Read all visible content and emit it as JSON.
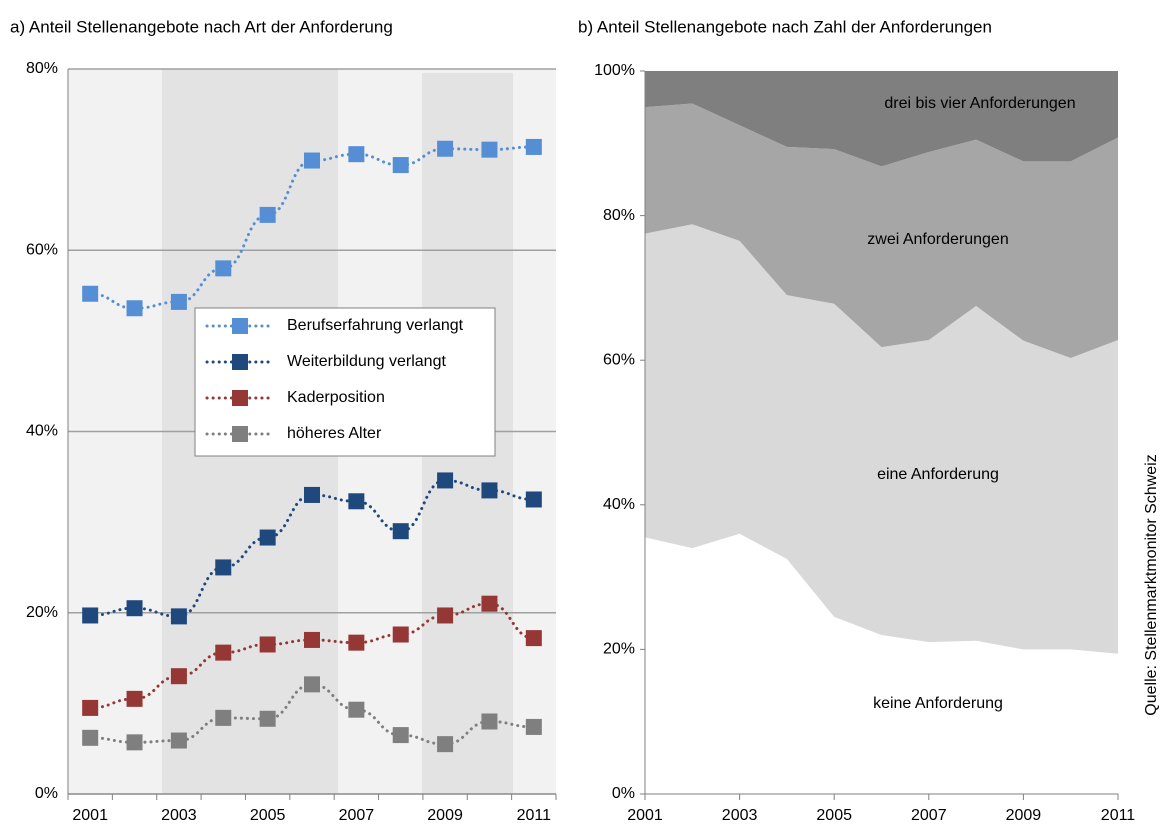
{
  "chart_data": [
    {
      "type": "line",
      "title": "a)  Anteil Stellenangebote  nach Art der Anforderung",
      "categories": [
        "2001",
        null,
        "2003",
        null,
        "2005",
        null,
        "2007",
        null,
        "2009",
        null,
        "2011"
      ],
      "ylim": [
        0,
        80
      ],
      "yticks": [
        {
          "value": 0,
          "label": "0%"
        },
        {
          "value": 20,
          "label": "20%"
        },
        {
          "value": 40,
          "label": "40%"
        },
        {
          "value": 60,
          "label": "60%"
        },
        {
          "value": 80,
          "label": "80%"
        }
      ],
      "grid": true,
      "series": [
        {
          "name": "Berufserfahrung verlangt",
          "color": "#558ed5",
          "values": [
            55.2,
            53.6,
            54.3,
            58,
            63.9,
            69.9,
            70.6,
            69.4,
            71.2,
            71.1,
            71.4
          ]
        },
        {
          "name": "Weiterbildung verlangt",
          "color": "#1f497d",
          "values": [
            19.7,
            20.5,
            19.6,
            25,
            28.3,
            33,
            32.3,
            29,
            34.6,
            33.5,
            32.5
          ]
        },
        {
          "name": "Kaderposition",
          "color": "#953735",
          "values": [
            9.5,
            10.5,
            13,
            15.6,
            16.5,
            17,
            16.7,
            17.6,
            19.7,
            21,
            17.2
          ]
        },
        {
          "name": "höheres Alter",
          "color": "#7f7f7f",
          "values": [
            6.2,
            5.7,
            5.9,
            8.4,
            8.3,
            12.1,
            9.3,
            6.5,
            5.5,
            8,
            7.4
          ]
        }
      ]
    },
    {
      "type": "area",
      "title": "b)  Anteil Stellenangebote  nach Zahl der Anforderungen",
      "x": [
        2001,
        2002,
        2003,
        2004,
        2005,
        2006,
        2007,
        2008,
        2009,
        2010,
        2011
      ],
      "xlim": [
        2001,
        2011
      ],
      "xticks": [
        2001,
        2003,
        2005,
        2007,
        2009,
        2011
      ],
      "ylim": [
        0,
        100
      ],
      "yticks": [
        {
          "value": 0,
          "label": "0%"
        },
        {
          "value": 20,
          "label": "20%"
        },
        {
          "value": 40,
          "label": "40%"
        },
        {
          "value": 60,
          "label": "60%"
        },
        {
          "value": 80,
          "label": "80%"
        },
        {
          "value": 100,
          "label": "100%"
        }
      ],
      "grid": false,
      "stacked": true,
      "series": [
        {
          "name": "keine Anforderung",
          "color": "#ffffff",
          "values": [
            35.5,
            34,
            36,
            32.5,
            24.5,
            22,
            21,
            21.2,
            20,
            20,
            19.4
          ]
        },
        {
          "name": "eine Anforderung",
          "color": "#d9d9d9",
          "values": [
            42,
            44.8,
            40.5,
            36.5,
            43.3,
            39.8,
            41.8,
            46.3,
            42.7,
            40.3,
            43.4
          ]
        },
        {
          "name": "zwei Anforderungen",
          "color": "#a6a6a6",
          "values": [
            17.5,
            16.7,
            16,
            20.5,
            21.4,
            25,
            26,
            23,
            24.8,
            27.2,
            28
          ]
        },
        {
          "name": "drei bis vier Anforderungen",
          "color": "#7f7f7f",
          "values": [
            5,
            4.5,
            7.5,
            10.5,
            10.8,
            13.2,
            11.2,
            9.5,
            12.5,
            12.5,
            9.2
          ]
        }
      ]
    }
  ],
  "source": "Quelle: Stellenmarktmonitor Schweiz"
}
